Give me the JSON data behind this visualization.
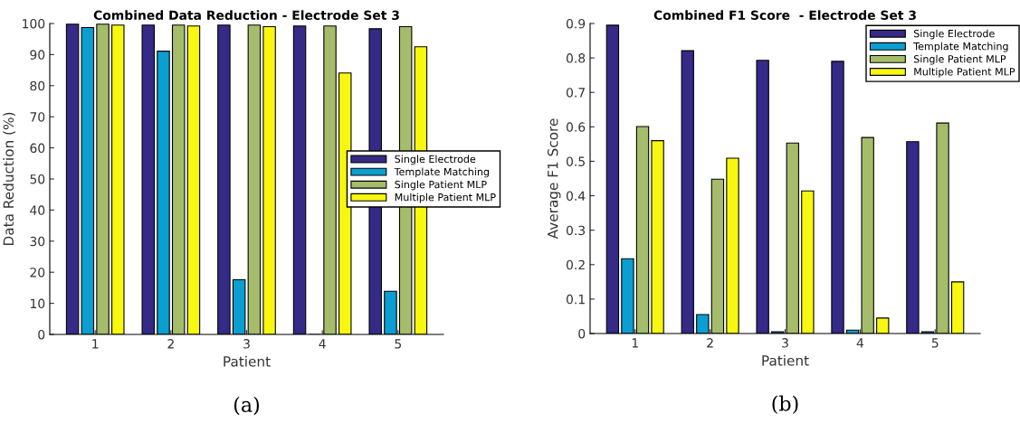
{
  "chart_data": [
    {
      "type": "bar",
      "title": "Combined Data Reduction - Electrode Set 3",
      "xlabel": "Patient",
      "ylabel": "Data Reduction (%)",
      "categories": [
        "1",
        "2",
        "3",
        "4",
        "5"
      ],
      "ylim": [
        0,
        100
      ],
      "yticks": [
        0,
        10,
        20,
        30,
        40,
        50,
        60,
        70,
        80,
        90,
        100
      ],
      "legend": "right",
      "grid": false,
      "annotations": [
        "(a)"
      ],
      "series": [
        {
          "name": "Single Electrode",
          "color": "#352a87",
          "values": [
            99.8,
            99.5,
            99.5,
            99.2,
            98.3
          ]
        },
        {
          "name": "Template Matching",
          "color": "#0a9fd0",
          "values": [
            98.7,
            91.1,
            17.6,
            0,
            13.9
          ]
        },
        {
          "name": "Single Patient MLP",
          "color": "#a5bd6a",
          "values": [
            99.8,
            99.5,
            99.5,
            99.2,
            99.0
          ]
        },
        {
          "name": "Multiple Patient MLP",
          "color": "#f7f70f",
          "values": [
            99.5,
            99.2,
            99.0,
            84.1,
            92.5
          ]
        }
      ]
    },
    {
      "type": "bar",
      "title": "Combined F1 Score  - Electrode Set 3",
      "xlabel": "Patient",
      "ylabel": "Average F1 Score",
      "categories": [
        "1",
        "2",
        "3",
        "4",
        "5"
      ],
      "ylim": [
        0,
        0.9
      ],
      "yticks": [
        0,
        0.1,
        0.2,
        0.3,
        0.4,
        0.5,
        0.6,
        0.7,
        0.8,
        0.9
      ],
      "legend": "top right",
      "grid": false,
      "annotations": [
        "(b)"
      ],
      "series": [
        {
          "name": "Single Electrode",
          "color": "#352a87",
          "values": [
            0.895,
            0.821,
            0.793,
            0.79,
            0.557
          ]
        },
        {
          "name": "Template Matching",
          "color": "#0a9fd0",
          "values": [
            0.217,
            0.055,
            0.005,
            0.01,
            0.005
          ]
        },
        {
          "name": "Single Patient MLP",
          "color": "#a5bd6a",
          "values": [
            0.601,
            0.448,
            0.553,
            0.569,
            0.611
          ]
        },
        {
          "name": "Multiple Patient MLP",
          "color": "#f7f70f",
          "values": [
            0.56,
            0.509,
            0.414,
            0.045,
            0.15
          ]
        }
      ]
    }
  ]
}
